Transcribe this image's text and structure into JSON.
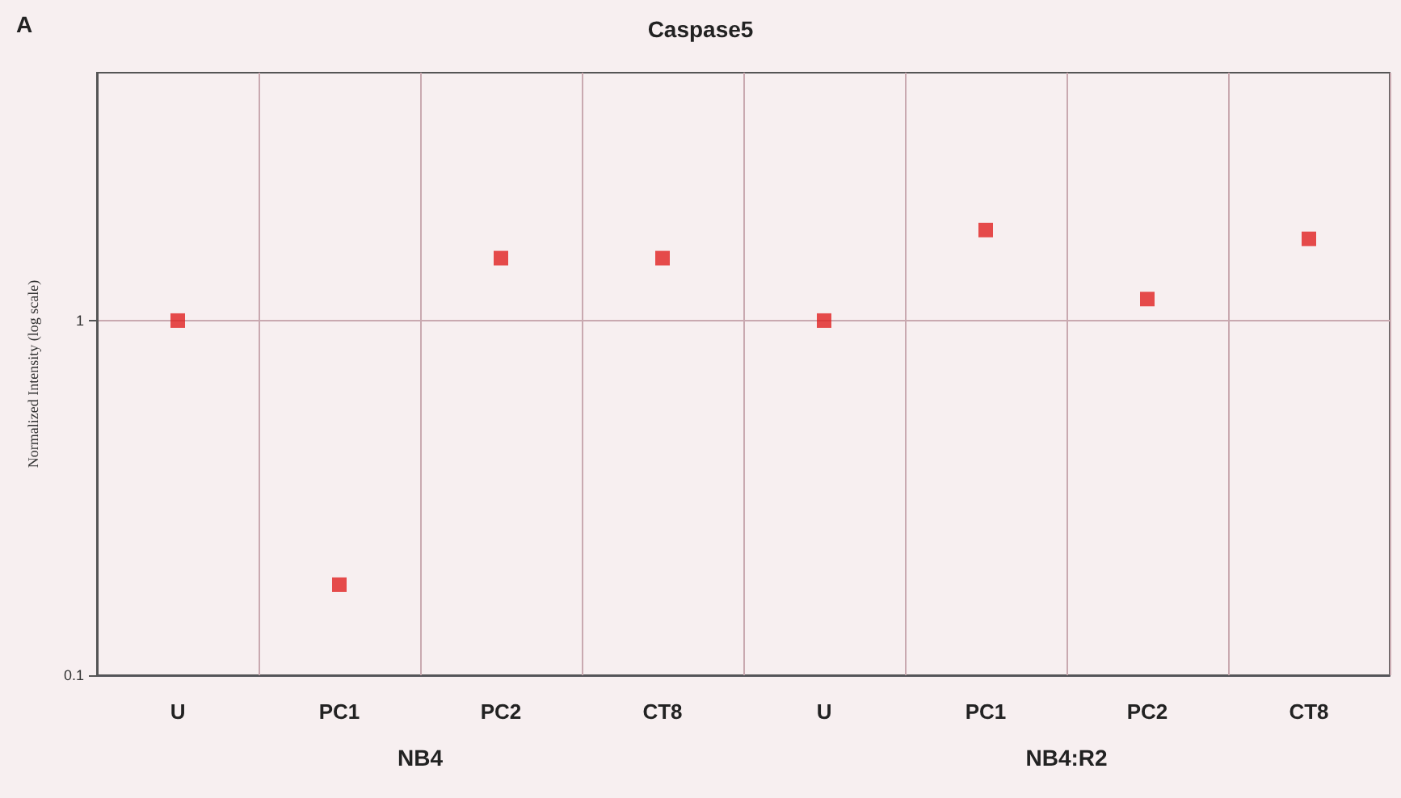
{
  "chart_data": {
    "type": "scatter",
    "title": "Caspase5",
    "ylabel": "Normalized Intensity (log scale)",
    "categories": [
      "U",
      "PC1",
      "PC2",
      "CT8",
      "U",
      "PC1",
      "PC2",
      "CT8"
    ],
    "values": [
      1,
      0.18,
      1.5,
      1.5,
      1,
      1.8,
      1.15,
      1.7
    ],
    "color": "#e02020",
    "marker": "square",
    "log": true,
    "ylim": [
      0.1,
      5
    ],
    "yticks": [
      0.1,
      1
    ],
    "grid": true,
    "annotations": [
      "A",
      "NB4",
      "NB4:R2"
    ]
  }
}
